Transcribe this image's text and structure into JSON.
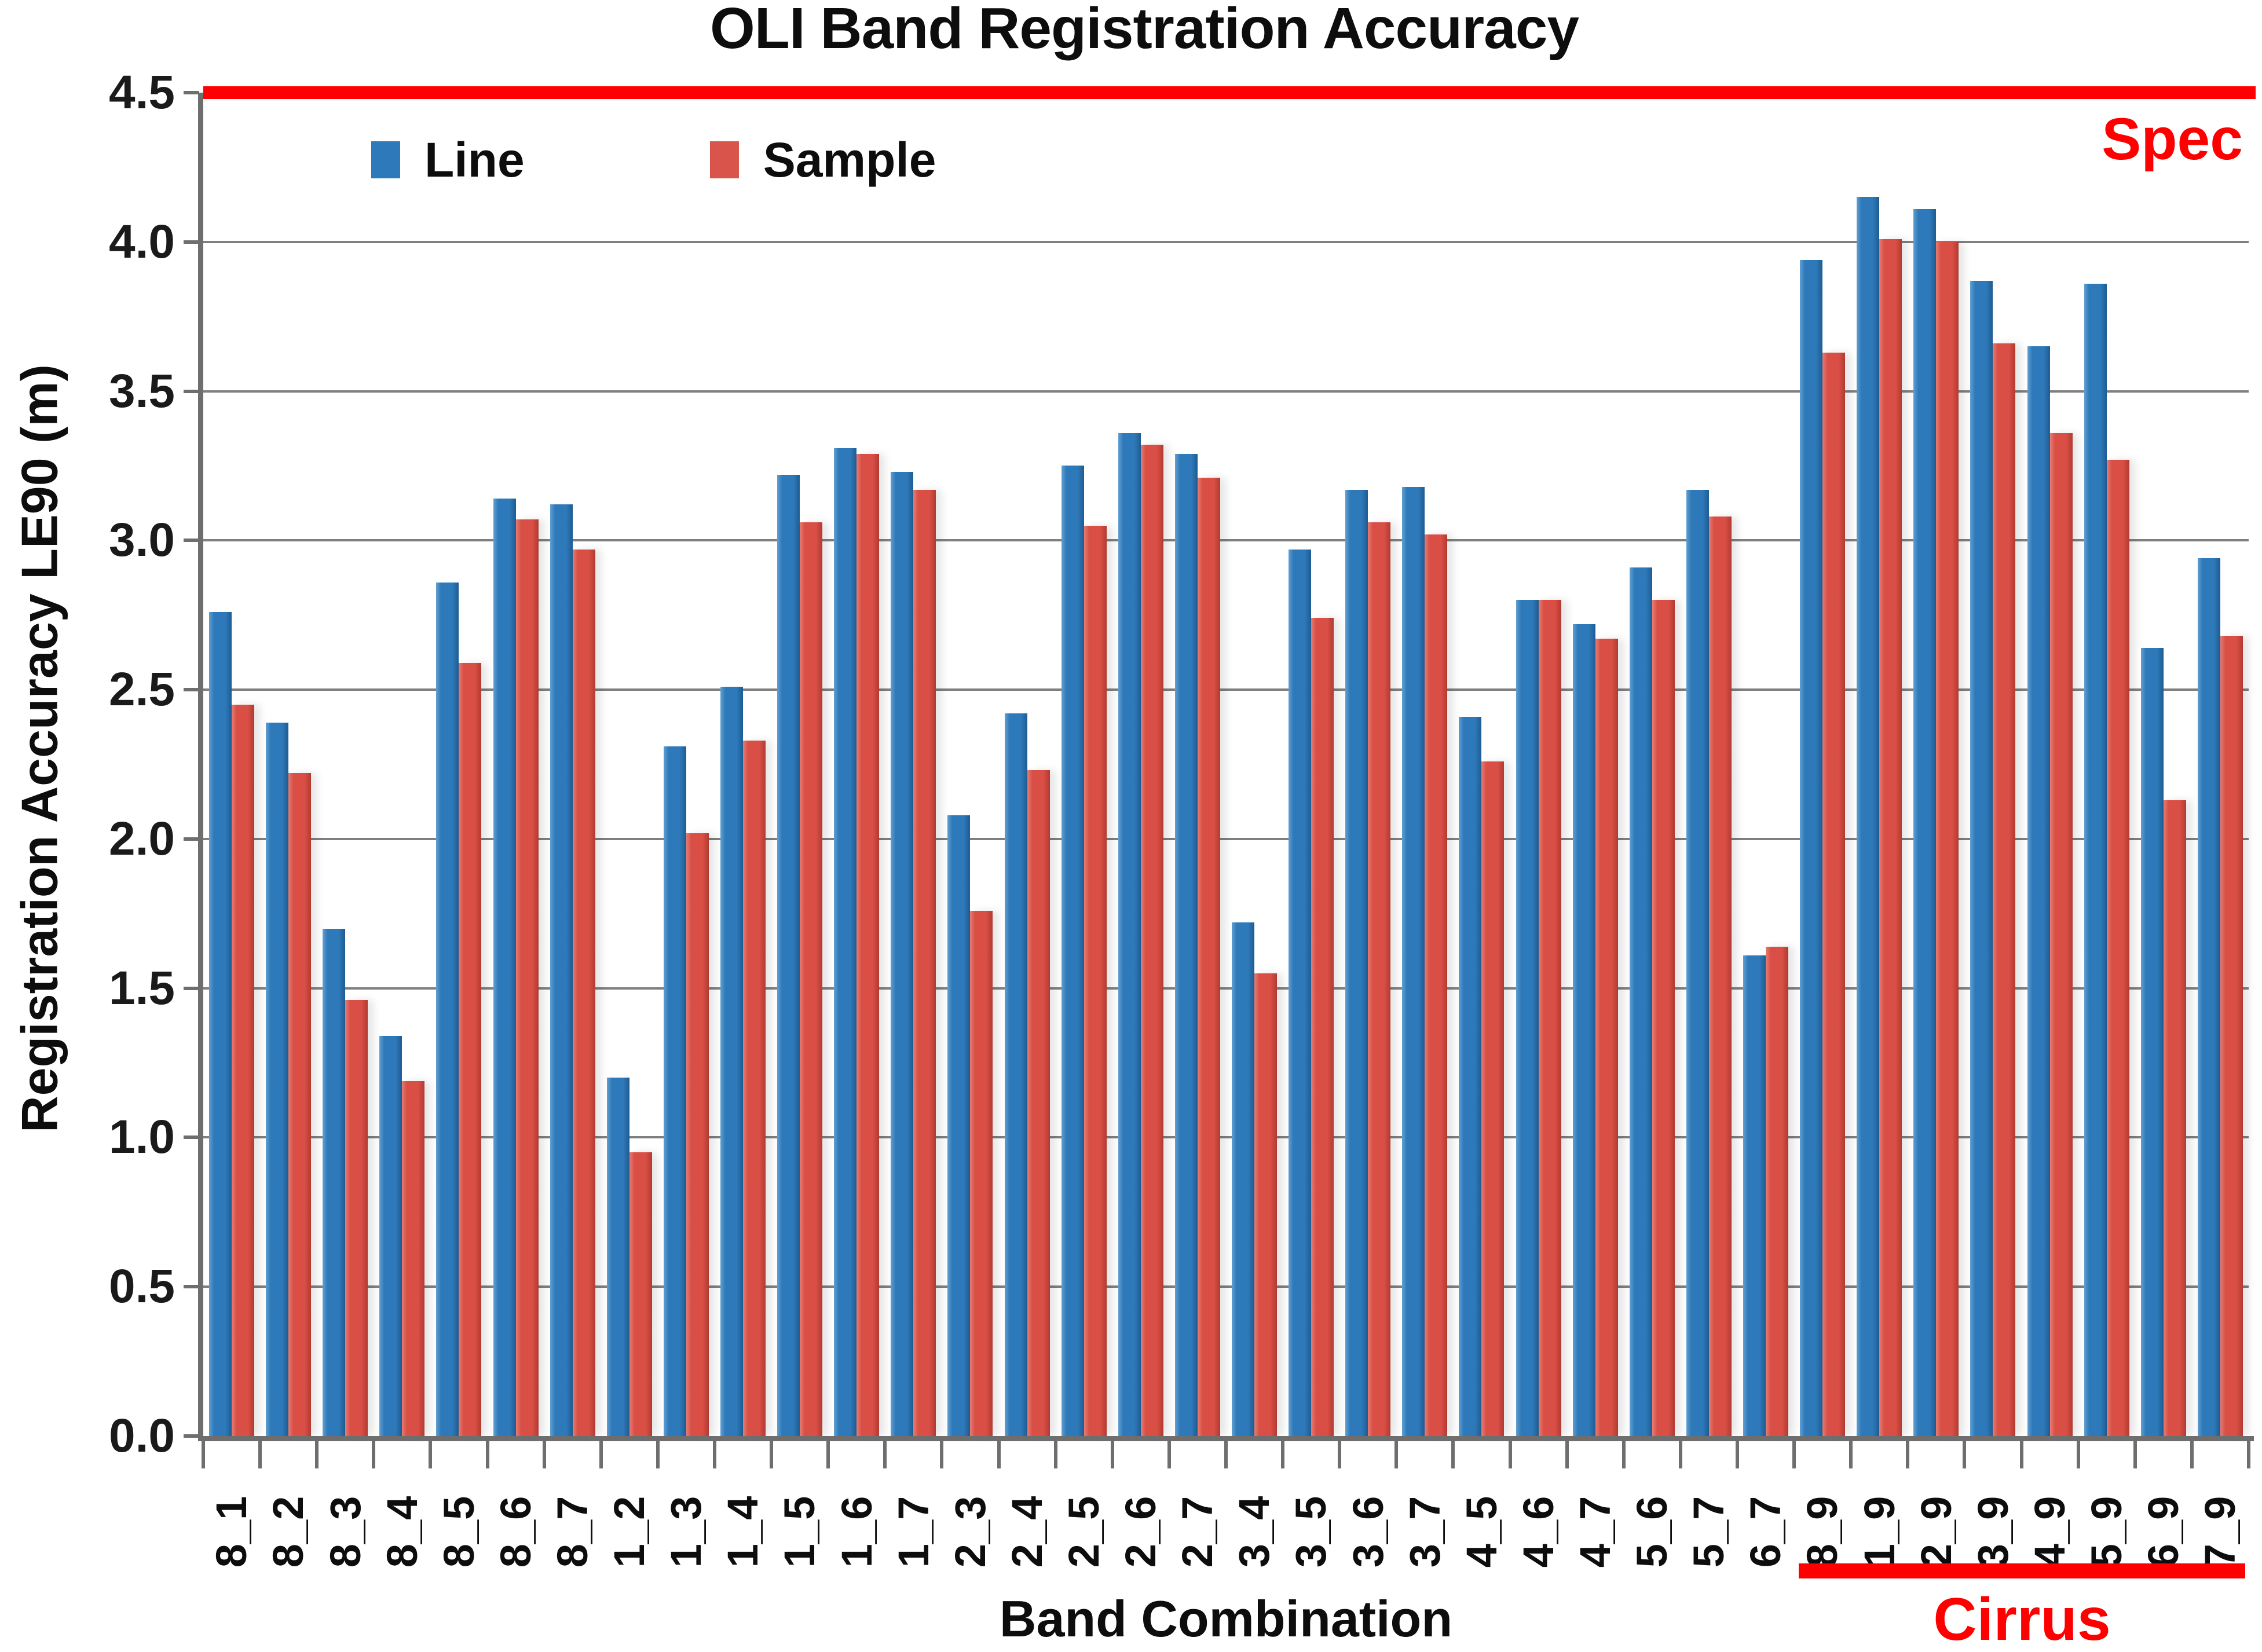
{
  "title": "OLI Band Registration Accuracy",
  "legend": {
    "line_label": "Line",
    "sample_label": "Sample"
  },
  "y_axis": {
    "title": "Registration Accuracy LE90 (m)",
    "ticks": [
      "4.5",
      "4.0",
      "3.5",
      "3.0",
      "2.5",
      "2.0",
      "1.5",
      "1.0",
      "0.5",
      "0.0"
    ]
  },
  "x_axis": {
    "title": "Band Combination"
  },
  "annotations": {
    "spec_label": "Spec",
    "cirrus_label": "Cirrus"
  },
  "colors": {
    "line_series": "#2e79b9",
    "sample_series": "#d94f45",
    "spec_red": "#fe0000",
    "gridline": "#7f7f7f",
    "axis": "#6e6e6e"
  },
  "chart_data": {
    "type": "bar",
    "title": "OLI Band Registration Accuracy",
    "xlabel": "Band Combination",
    "ylabel": "Registration Accuracy LE90 (m)",
    "ylim": [
      0,
      4.5
    ],
    "ytick_step": 0.5,
    "grid": "horizontal",
    "legend_position": "top-left-inside",
    "spec_line_value": 4.5,
    "cirrus_categories": [
      "8_9",
      "1_9",
      "2_9",
      "3_9",
      "4_9",
      "5_9",
      "6_9",
      "7_9"
    ],
    "categories": [
      "8_1",
      "8_2",
      "8_3",
      "8_4",
      "8_5",
      "8_6",
      "8_7",
      "1_2",
      "1_3",
      "1_4",
      "1_5",
      "1_6",
      "1_7",
      "2_3",
      "2_4",
      "2_5",
      "2_6",
      "2_7",
      "3_4",
      "3_5",
      "3_6",
      "3_7",
      "4_5",
      "4_6",
      "4_7",
      "5_6",
      "5_7",
      "6_7",
      "8_9",
      "1_9",
      "2_9",
      "3_9",
      "4_9",
      "5_9",
      "6_9",
      "7_9"
    ],
    "series": [
      {
        "name": "Line",
        "values": [
          2.76,
          2.39,
          1.7,
          1.34,
          2.86,
          3.14,
          3.12,
          1.2,
          2.31,
          2.51,
          3.22,
          3.31,
          3.23,
          2.08,
          2.42,
          3.25,
          3.36,
          3.29,
          1.72,
          2.97,
          3.17,
          3.18,
          2.41,
          2.8,
          2.72,
          2.91,
          3.17,
          1.61,
          3.94,
          4.15,
          4.11,
          3.87,
          3.65,
          3.86,
          2.64,
          2.94
        ]
      },
      {
        "name": "Sample",
        "values": [
          2.45,
          2.22,
          1.46,
          1.19,
          2.59,
          3.07,
          2.97,
          0.95,
          2.02,
          2.33,
          3.06,
          3.29,
          3.17,
          1.76,
          2.23,
          3.05,
          3.32,
          3.21,
          1.55,
          2.74,
          3.06,
          3.02,
          2.26,
          2.8,
          2.67,
          2.8,
          3.08,
          1.64,
          3.63,
          4.01,
          4.0,
          3.66,
          3.36,
          3.27,
          2.13,
          2.68
        ]
      }
    ]
  }
}
